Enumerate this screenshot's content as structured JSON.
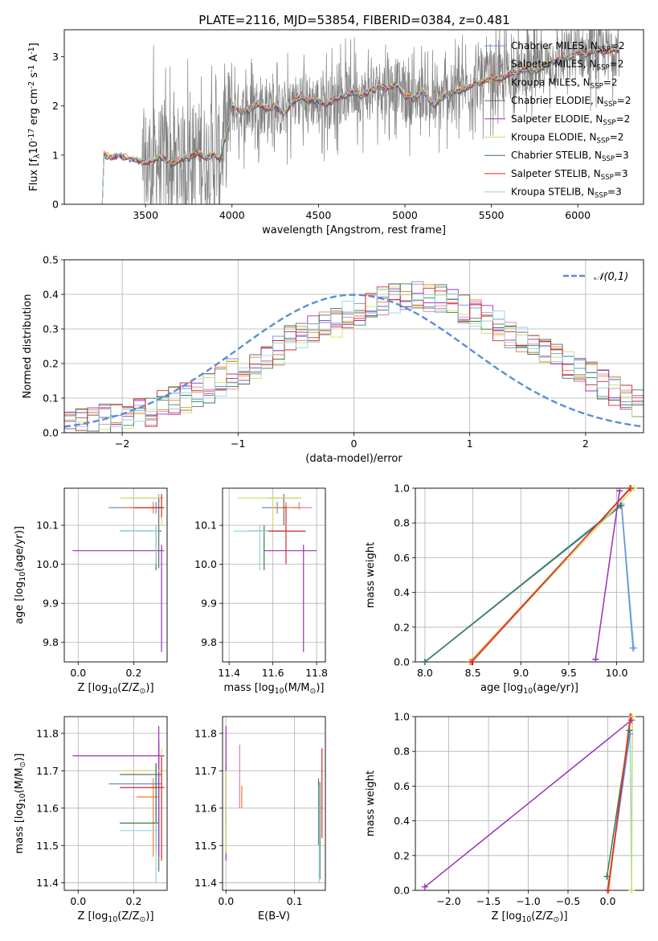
{
  "figure_title": "PLATE=2116, MJD=53854, FIBERID=0384, z=0.481",
  "colors": {
    "Chabrier MILES": "#6a8ed8",
    "Salpeter MILES": "#e879b4",
    "Kroupa MILES": "#f07f2e",
    "Chabrier ELODIE": "#6b6b6b",
    "Salpeter ELODIE": "#9b2fb8",
    "Kroupa ELODIE": "#cfe06a",
    "Chabrier STELIB": "#3d7a4a",
    "Salpeter STELIB": "#d12b2b",
    "Kroupa STELIB": "#8fd6e0",
    "data": "#808080",
    "normal": "#5b8dd9"
  },
  "chart_data": [
    {
      "type": "line",
      "id": "spectrum",
      "xlabel": "wavelength [Angstrom, rest frame]",
      "ylabel": "Flux [f$_\\lambda$10$^{-17}$ erg cm$^{-2}$ s$^{-1}$ A$^{-1}$]",
      "xlim": [
        3030,
        6380
      ],
      "ylim": [
        0,
        3.55
      ],
      "xticks": [
        3500,
        4000,
        4500,
        5000,
        5500,
        6000
      ],
      "yticks": [
        0,
        1,
        2,
        3
      ],
      "grid": false,
      "legend_position": "top-right",
      "legend": [
        "Chabrier MILES, N$_{SSP}$=2",
        "Salpeter MILES, N$_{SSP}$=2",
        "Kroupa MILES, N$_{SSP}$=2",
        "Chabrier ELODIE, N$_{SSP}$=2",
        "Salpeter ELODIE, N$_{SSP}$=2",
        "Kroupa ELODIE, N$_{SSP}$=2",
        "Chabrier STELIB, N$_{SSP}$=3",
        "Salpeter STELIB, N$_{SSP}$=3",
        "Kroupa STELIB, N$_{SSP}$=3"
      ],
      "model_continuum": {
        "x": [
          3220,
          3260,
          3300,
          3350,
          3400,
          3450,
          3500,
          3550,
          3600,
          3650,
          3700,
          3750,
          3800,
          3850,
          3900,
          3930,
          3950,
          3970,
          4000,
          4050,
          4100,
          4150,
          4200,
          4250,
          4300,
          4350,
          4400,
          4450,
          4500,
          4550,
          4600,
          4650,
          4700,
          4750,
          4800,
          4850,
          4900,
          4950,
          5000,
          5050,
          5100,
          5150,
          5175,
          5200,
          5250,
          5300,
          5350,
          5400,
          5450,
          5500,
          5550,
          5600,
          5650,
          5700,
          5750,
          5800,
          5850,
          5900,
          5950,
          6000,
          6050,
          6100,
          6150,
          6200
        ],
        "y": [
          0.0,
          1.0,
          0.95,
          1.0,
          0.92,
          0.9,
          0.85,
          0.9,
          0.95,
          0.82,
          0.92,
          0.95,
          1.05,
          0.95,
          1.02,
          0.9,
          1.25,
          1.45,
          2.0,
          1.9,
          1.92,
          2.05,
          1.95,
          2.0,
          1.85,
          2.05,
          2.2,
          2.1,
          2.1,
          2.05,
          2.15,
          2.2,
          2.3,
          2.2,
          2.3,
          2.4,
          2.35,
          2.45,
          2.2,
          2.15,
          2.3,
          2.1,
          2.0,
          2.15,
          2.25,
          2.3,
          2.35,
          2.45,
          2.5,
          2.6,
          2.55,
          2.65,
          2.7,
          2.75,
          2.7,
          2.8,
          2.9,
          2.95,
          3.0,
          3.1,
          3.05,
          3.15,
          3.1,
          3.15
        ]
      },
      "data_noise_start": 3480,
      "data_end": 6240
    },
    {
      "type": "histogram",
      "id": "residuals",
      "xlabel": "(data-model)/error",
      "ylabel": "Normed distribution",
      "xlim": [
        -2.5,
        2.5
      ],
      "ylim": [
        0,
        0.5
      ],
      "xticks": [
        -2,
        -1,
        0,
        1,
        2
      ],
      "yticks": [
        0.0,
        0.1,
        0.2,
        0.3,
        0.4,
        0.5
      ],
      "grid": true,
      "legend_position": "top-right",
      "legend": [
        "$\\mathcal{N}(0,1)$"
      ],
      "bin_width": 0.1,
      "bin_start": -2.5,
      "reference_density": [
        0.02,
        0.03,
        0.03,
        0.04,
        0.04,
        0.05,
        0.06,
        0.06,
        0.08,
        0.09,
        0.1,
        0.12,
        0.13,
        0.15,
        0.17,
        0.18,
        0.2,
        0.22,
        0.24,
        0.27,
        0.28,
        0.3,
        0.31,
        0.32,
        0.34,
        0.35,
        0.37,
        0.38,
        0.39,
        0.39,
        0.4,
        0.39,
        0.39,
        0.37,
        0.36,
        0.34,
        0.33,
        0.31,
        0.29,
        0.27,
        0.26,
        0.24,
        0.22,
        0.2,
        0.18,
        0.16,
        0.14,
        0.12,
        0.1,
        0.09,
        0.08,
        0.07,
        0.06,
        0.05,
        0.04,
        0.04,
        0.03,
        0.03,
        0.02,
        0.02
      ]
    },
    {
      "type": "scatter",
      "id": "age_vs_Z",
      "xlabel": "Z [log$_{10}$($Z/Z_\\odot$)]",
      "ylabel": "age  [log$_{10}$($age/yr$)]",
      "xlim": [
        -0.05,
        0.32
      ],
      "ylim": [
        9.75,
        10.195
      ],
      "xticks": [
        0.0,
        0.2
      ],
      "yticks": [
        9.8,
        9.9,
        10.0,
        10.1
      ],
      "grid": true,
      "points": [
        {
          "model": "Chabrier MILES",
          "x": 0.28,
          "y": 10.145,
          "xlo": 0.11,
          "xhi": 0.3,
          "ylo": 10.13,
          "yhi": 10.16
        },
        {
          "model": "Salpeter MILES",
          "x": 0.29,
          "y": 10.17,
          "xlo": 0.17,
          "xhi": 0.3,
          "ylo": 10.16,
          "yhi": 10.18
        },
        {
          "model": "Kroupa MILES",
          "x": 0.27,
          "y": 10.145,
          "xlo": 0.16,
          "xhi": 0.29,
          "ylo": 10.13,
          "yhi": 10.16
        },
        {
          "model": "Chabrier ELODIE",
          "x": 0.29,
          "y": 10.085,
          "xlo": 0.15,
          "xhi": 0.3,
          "ylo": 9.99,
          "yhi": 10.17
        },
        {
          "model": "Salpeter ELODIE",
          "x": 0.3,
          "y": 10.035,
          "xlo": -0.02,
          "xhi": 0.31,
          "ylo": 9.775,
          "yhi": 10.05
        },
        {
          "model": "Kroupa ELODIE",
          "x": 0.3,
          "y": 10.17,
          "xlo": 0.15,
          "xhi": 0.31,
          "ylo": 10.1,
          "yhi": 10.18
        },
        {
          "model": "Chabrier STELIB",
          "x": 0.28,
          "y": 10.085,
          "xlo": 0.15,
          "xhi": 0.29,
          "ylo": 9.985,
          "yhi": 10.1
        },
        {
          "model": "Salpeter STELIB",
          "x": 0.3,
          "y": 10.145,
          "xlo": 0.2,
          "xhi": 0.31,
          "ylo": 10.12,
          "yhi": 10.18
        },
        {
          "model": "Kroupa STELIB",
          "x": 0.28,
          "y": 10.085,
          "xlo": 0.15,
          "xhi": 0.29,
          "ylo": 10.0,
          "yhi": 10.1
        }
      ]
    },
    {
      "type": "scatter",
      "id": "age_vs_mass",
      "xlabel": "mass [log$_{10}$($M/M_\\odot$)]",
      "ylabel": "",
      "xlim": [
        11.37,
        11.84
      ],
      "ylim": [
        9.75,
        10.195
      ],
      "xticks": [
        11.4,
        11.6,
        11.8
      ],
      "yticks": [
        9.8,
        9.9,
        10.0,
        10.1
      ],
      "grid": true,
      "points": [
        {
          "model": "Chabrier MILES",
          "x": 11.62,
          "y": 10.145,
          "xlo": 11.55,
          "xhi": 11.66,
          "ylo": 10.13,
          "yhi": 10.16
        },
        {
          "model": "Salpeter MILES",
          "x": 11.72,
          "y": 10.145,
          "xlo": 11.68,
          "xhi": 11.78,
          "ylo": 10.14,
          "yhi": 10.16
        },
        {
          "model": "Kroupa MILES",
          "x": 11.66,
          "y": 10.145,
          "xlo": 11.6,
          "xhi": 11.72,
          "ylo": 10.13,
          "yhi": 10.16
        },
        {
          "model": "Chabrier ELODIE",
          "x": 11.65,
          "y": 10.17,
          "xlo": 11.58,
          "xhi": 11.73,
          "ylo": 10.1,
          "yhi": 10.18
        },
        {
          "model": "Salpeter ELODIE",
          "x": 11.74,
          "y": 10.035,
          "xlo": 11.56,
          "xhi": 11.8,
          "ylo": 9.775,
          "yhi": 10.05
        },
        {
          "model": "Kroupa ELODIE",
          "x": 11.6,
          "y": 10.17,
          "xlo": 11.44,
          "xhi": 11.73,
          "ylo": 10.1,
          "yhi": 10.18
        },
        {
          "model": "Chabrier STELIB",
          "x": 11.56,
          "y": 10.085,
          "xlo": 11.48,
          "xhi": 11.66,
          "ylo": 9.985,
          "yhi": 10.1
        },
        {
          "model": "Salpeter STELIB",
          "x": 11.66,
          "y": 10.085,
          "xlo": 11.52,
          "xhi": 11.75,
          "ylo": 10.0,
          "yhi": 10.15
        },
        {
          "model": "Kroupa STELIB",
          "x": 11.54,
          "y": 10.085,
          "xlo": 11.42,
          "xhi": 11.58,
          "ylo": 9.985,
          "yhi": 10.1
        }
      ]
    },
    {
      "type": "line",
      "id": "weight_vs_age",
      "xlabel": "age  [log$_{10}$($age/yr$)]",
      "ylabel": "mass weight",
      "xlim": [
        7.9,
        10.28
      ],
      "ylim": [
        0,
        1.0
      ],
      "xticks": [
        8.0,
        8.5,
        9.0,
        9.5,
        10.0
      ],
      "yticks": [
        0.0,
        0.2,
        0.4,
        0.6,
        0.8,
        1.0
      ],
      "grid": true,
      "series": [
        {
          "model": "Kroupa STELIB",
          "x": [
            8.0,
            10.05,
            10.18
          ],
          "y": [
            0.0,
            0.91,
            0.08
          ]
        },
        {
          "model": "Chabrier MILES",
          "x": [
            8.0,
            10.05,
            10.17
          ],
          "y": [
            0.0,
            0.9,
            0.08
          ]
        },
        {
          "model": "Chabrier STELIB",
          "x": [
            8.0,
            10.04
          ],
          "y": [
            0.0,
            0.9
          ]
        },
        {
          "model": "Kroupa ELODIE",
          "x": [
            8.48,
            10.18
          ],
          "y": [
            0.0,
            1.0
          ]
        },
        {
          "model": "Kroupa MILES",
          "x": [
            8.47,
            10.15
          ],
          "y": [
            0.0,
            1.0
          ]
        },
        {
          "model": "Salpeter STELIB",
          "x": [
            8.49,
            10.14
          ],
          "y": [
            0.0,
            1.0
          ]
        },
        {
          "model": "Salpeter ELODIE",
          "x": [
            9.78,
            10.03
          ],
          "y": [
            0.015,
            0.985
          ]
        }
      ]
    },
    {
      "type": "scatter",
      "id": "mass_vs_Z",
      "xlabel": "Z [log$_{10}$($Z/Z_\\odot$)]",
      "ylabel": "mass [log$_{10}$($M/M_\\odot$)]",
      "xlim": [
        -0.05,
        0.32
      ],
      "ylim": [
        11.38,
        11.845
      ],
      "xticks": [
        0.0,
        0.2
      ],
      "yticks": [
        11.4,
        11.5,
        11.6,
        11.7,
        11.8
      ],
      "grid": true,
      "points": [
        {
          "model": "Chabrier MILES",
          "x": 0.28,
          "y": 11.665,
          "xlo": 0.11,
          "xhi": 0.3,
          "ylo": 11.5,
          "yhi": 11.72
        },
        {
          "model": "Salpeter MILES",
          "x": 0.29,
          "y": 11.7,
          "xlo": 0.17,
          "xhi": 0.3,
          "ylo": 11.5,
          "yhi": 11.77
        },
        {
          "model": "Kroupa MILES",
          "x": 0.27,
          "y": 11.63,
          "xlo": 0.21,
          "xhi": 0.29,
          "ylo": 11.47,
          "yhi": 11.68
        },
        {
          "model": "Chabrier ELODIE",
          "x": 0.29,
          "y": 11.69,
          "xlo": 0.15,
          "xhi": 0.3,
          "ylo": 11.43,
          "yhi": 11.78
        },
        {
          "model": "Salpeter ELODIE",
          "x": 0.29,
          "y": 11.74,
          "xlo": -0.02,
          "xhi": 0.31,
          "ylo": 11.47,
          "yhi": 11.82
        },
        {
          "model": "Kroupa ELODIE",
          "x": 0.3,
          "y": 11.7,
          "xlo": 0.15,
          "xhi": 0.31,
          "ylo": 11.46,
          "yhi": 11.76
        },
        {
          "model": "Chabrier STELIB",
          "x": 0.28,
          "y": 11.56,
          "xlo": 0.15,
          "xhi": 0.29,
          "ylo": 11.48,
          "yhi": 11.72
        },
        {
          "model": "Salpeter STELIB",
          "x": 0.3,
          "y": 11.655,
          "xlo": 0.15,
          "xhi": 0.31,
          "ylo": 11.46,
          "yhi": 11.74
        },
        {
          "model": "Kroupa STELIB",
          "x": 0.28,
          "y": 11.54,
          "xlo": 0.15,
          "xhi": 0.29,
          "ylo": 11.4,
          "yhi": 11.56
        }
      ]
    },
    {
      "type": "scatter",
      "id": "mass_vs_EBV",
      "xlabel": "E(B-V)",
      "ylabel": "",
      "xlim": [
        -0.005,
        0.145
      ],
      "ylim": [
        11.38,
        11.845
      ],
      "xticks": [
        0.0,
        0.1
      ],
      "yticks": [
        11.4,
        11.5,
        11.6,
        11.7,
        11.8
      ],
      "grid": true,
      "points": [
        {
          "model": "Chabrier MILES",
          "x": 0.0,
          "y": 11.665,
          "ylo": 11.55,
          "yhi": 11.72
        },
        {
          "model": "Salpeter MILES",
          "x": 0.02,
          "y": 11.7,
          "ylo": 11.6,
          "yhi": 11.77
        },
        {
          "model": "Kroupa MILES",
          "x": 0.023,
          "y": 11.63,
          "ylo": 11.6,
          "yhi": 11.66
        },
        {
          "model": "Chabrier ELODIE",
          "x": 0.135,
          "y": 11.62,
          "ylo": 11.5,
          "yhi": 11.68
        },
        {
          "model": "Salpeter ELODIE",
          "x": 0.0,
          "y": 11.74,
          "ylo": 11.46,
          "yhi": 11.82
        },
        {
          "model": "Kroupa ELODIE",
          "x": 0.0,
          "y": 11.6,
          "ylo": 11.48,
          "yhi": 11.7
        },
        {
          "model": "Chabrier STELIB",
          "x": 0.137,
          "y": 11.56,
          "ylo": 11.41,
          "yhi": 11.67
        },
        {
          "model": "Salpeter STELIB",
          "x": 0.14,
          "y": 11.655,
          "ylo": 11.52,
          "yhi": 11.76
        },
        {
          "model": "Kroupa STELIB",
          "x": 0.136,
          "y": 11.54,
          "ylo": 11.4,
          "yhi": 11.66
        }
      ]
    },
    {
      "type": "line",
      "id": "weight_vs_Z",
      "xlabel": "Z [log$_{10}$($Z/Z_\\odot$)]",
      "ylabel": "mass weight",
      "xlim": [
        -2.42,
        0.45
      ],
      "ylim": [
        0,
        1.0
      ],
      "xticks": [
        -2.0,
        -1.5,
        -1.0,
        -0.5,
        0.0
      ],
      "yticks": [
        0.0,
        0.2,
        0.4,
        0.6,
        0.8,
        1.0
      ],
      "grid": true,
      "series": [
        {
          "model": "Salpeter ELODIE",
          "x": [
            -2.3,
            0.3
          ],
          "y": [
            0.02,
            0.98
          ]
        },
        {
          "model": "Kroupa STELIB",
          "x": [
            0.0,
            0.28,
            0.3
          ],
          "y": [
            0.0,
            0.92,
            0.0
          ]
        },
        {
          "model": "Chabrier MILES",
          "x": [
            0.0,
            0.28
          ],
          "y": [
            0.0,
            0.9
          ]
        },
        {
          "model": "Chabrier STELIB",
          "x": [
            -0.01,
            0.27
          ],
          "y": [
            0.08,
            0.92
          ]
        },
        {
          "model": "Kroupa MILES",
          "x": [
            0.01,
            0.28
          ],
          "y": [
            0.0,
            1.0
          ]
        },
        {
          "model": "Salpeter STELIB",
          "x": [
            0.0,
            0.29
          ],
          "y": [
            0.0,
            1.0
          ]
        },
        {
          "model": "Kroupa ELODIE",
          "x": [
            0.3,
            0.31
          ],
          "y": [
            0.0,
            1.0
          ]
        }
      ]
    }
  ]
}
